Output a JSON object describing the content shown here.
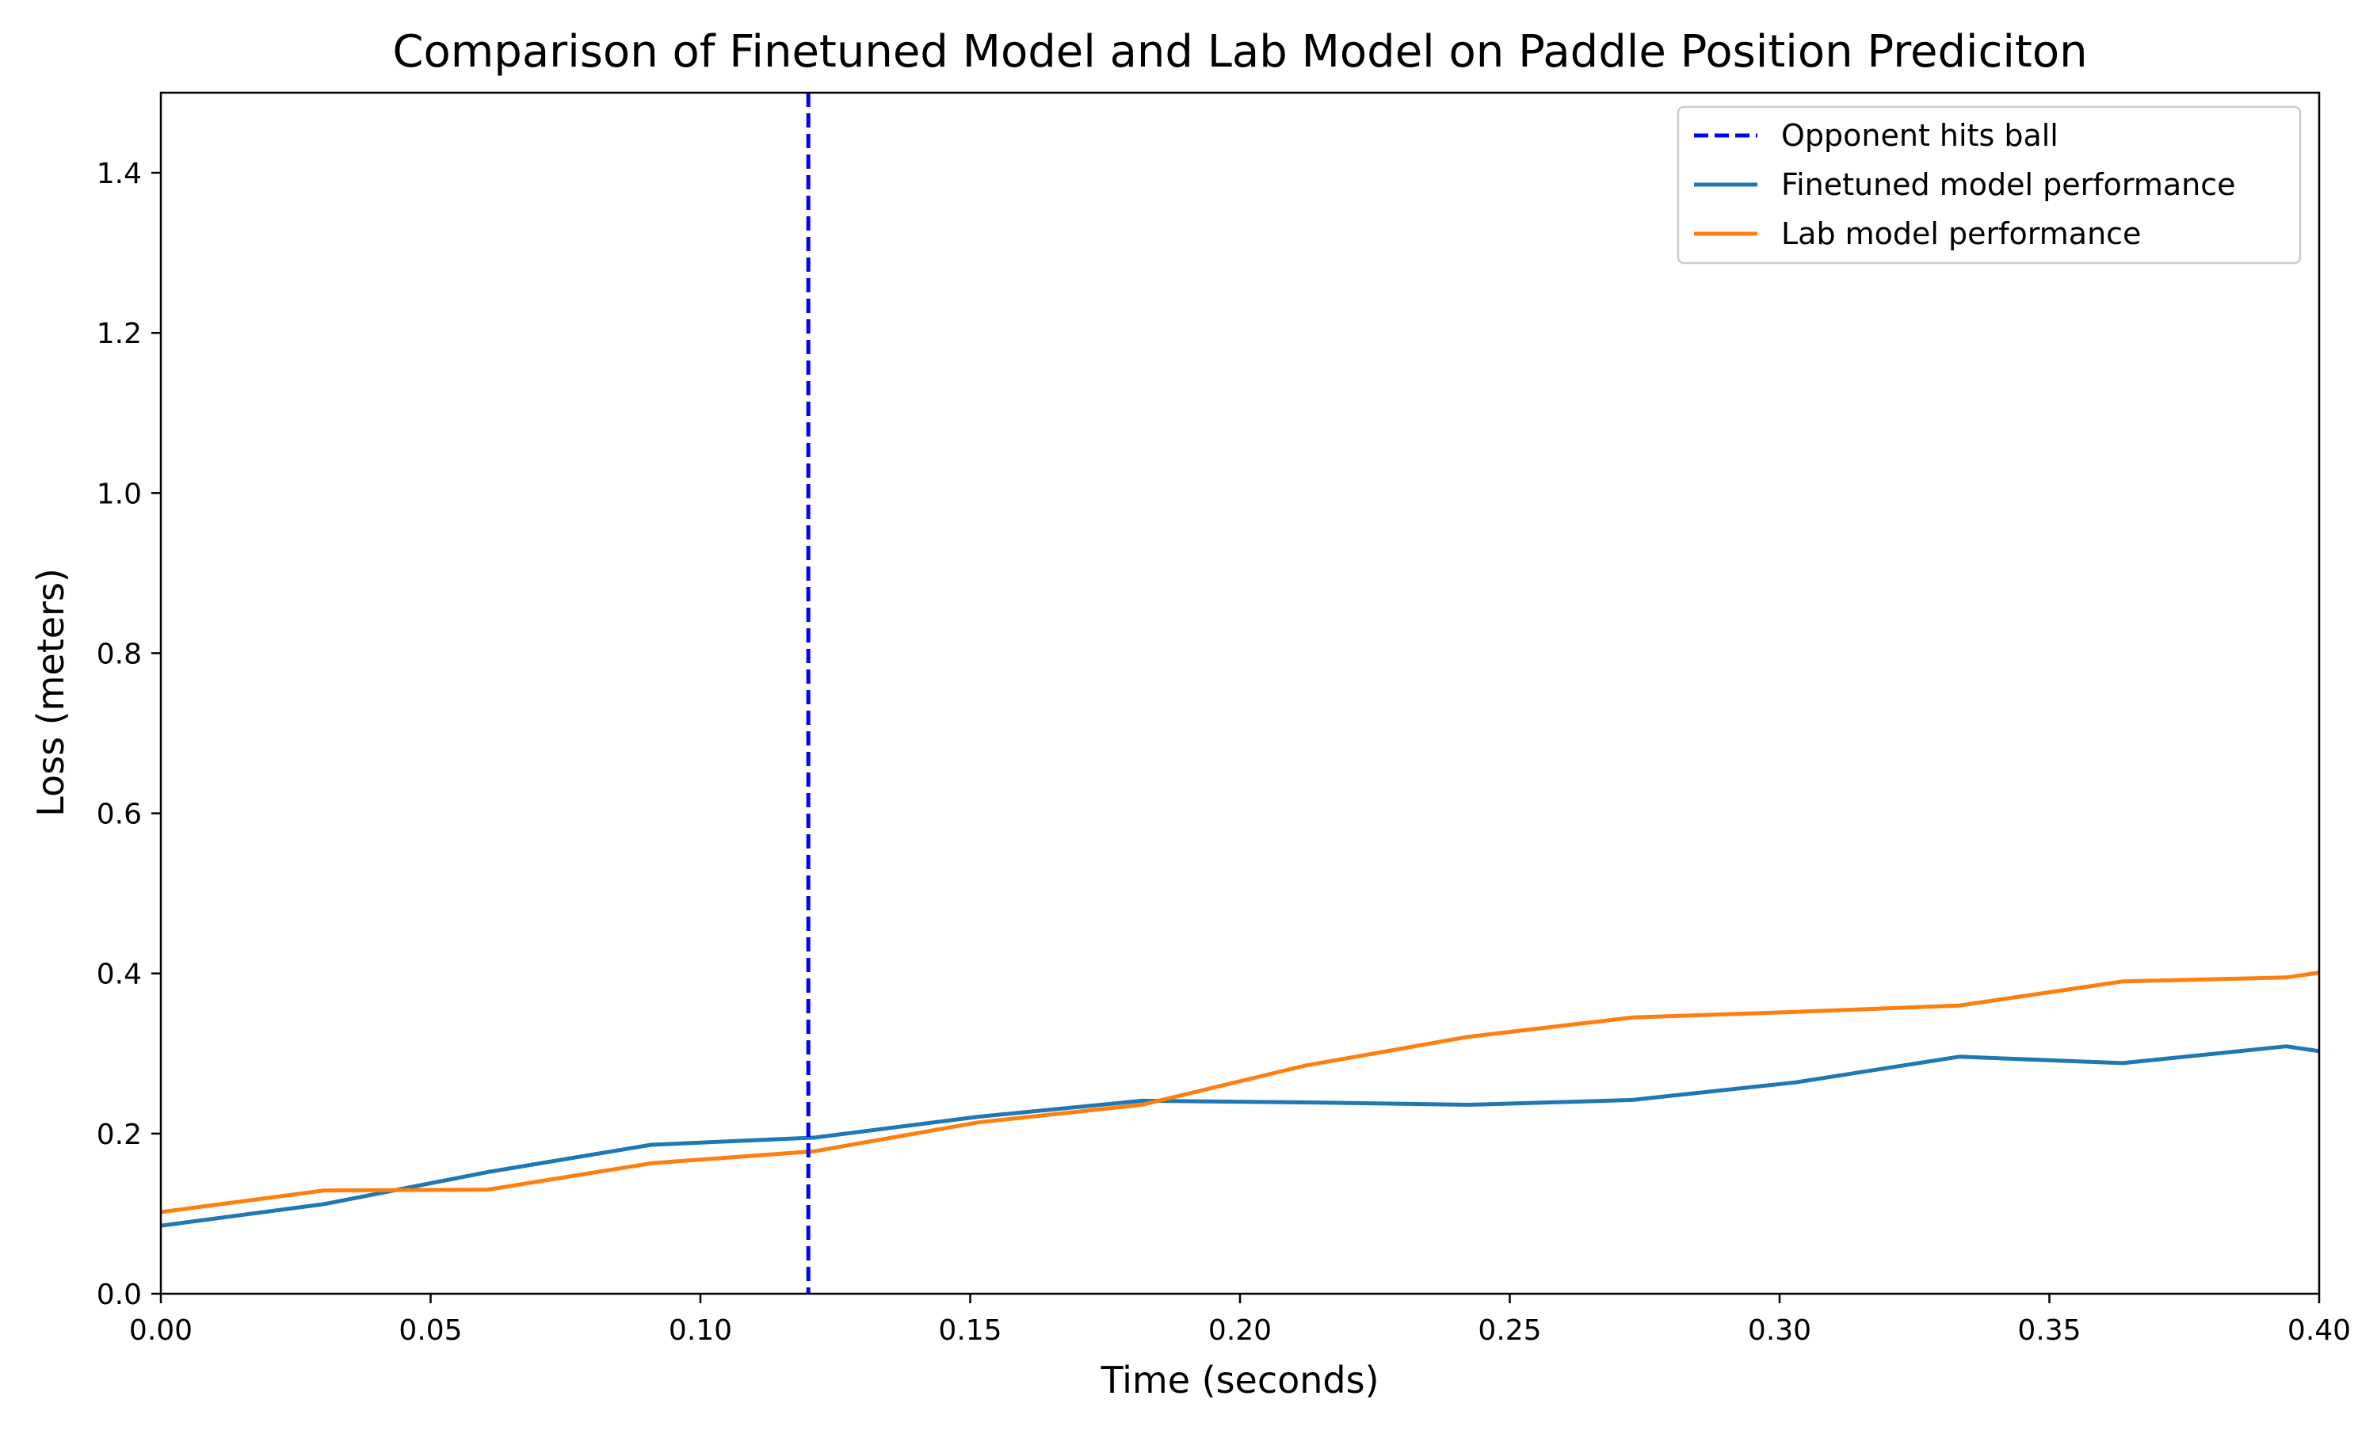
{
  "chart_data": {
    "type": "line",
    "title": "Comparison of Finetuned Model and Lab Model on Paddle Position Prediciton",
    "xlabel": "Time (seconds)",
    "ylabel": "Loss (meters)",
    "xlim": [
      0.0,
      0.4
    ],
    "ylim": [
      0.0,
      1.5
    ],
    "xticks": [
      0.0,
      0.05,
      0.1,
      0.15,
      0.2,
      0.25,
      0.3,
      0.35,
      0.4
    ],
    "xtick_labels": [
      "0.00",
      "0.05",
      "0.10",
      "0.15",
      "0.20",
      "0.25",
      "0.30",
      "0.35",
      "0.40"
    ],
    "yticks": [
      0.0,
      0.2,
      0.4,
      0.6,
      0.8,
      1.0,
      1.2,
      1.4
    ],
    "ytick_labels": [
      "0.0",
      "0.2",
      "0.4",
      "0.6",
      "0.8",
      "1.0",
      "1.2",
      "1.4"
    ],
    "grid": false,
    "legend_position": "top-right",
    "vline": {
      "name": "Opponent hits ball",
      "x": 0.12,
      "color": "#0000ff",
      "style": "dashed"
    },
    "series": [
      {
        "name": "Finetuned model performance",
        "color": "#1f77b4",
        "x": [
          0.0,
          0.0303,
          0.0606,
          0.0909,
          0.1212,
          0.1515,
          0.1818,
          0.2121,
          0.2424,
          0.2727,
          0.303,
          0.3333,
          0.3636,
          0.3939,
          0.4
        ],
        "y": [
          0.085,
          0.112,
          0.152,
          0.186,
          0.195,
          0.221,
          0.241,
          0.239,
          0.236,
          0.242,
          0.264,
          0.296,
          0.288,
          0.309,
          0.303
        ]
      },
      {
        "name": "Lab model performance",
        "color": "#ff7f0e",
        "x": [
          0.0,
          0.0303,
          0.0606,
          0.0909,
          0.1212,
          0.1515,
          0.1818,
          0.2121,
          0.2424,
          0.2727,
          0.303,
          0.3333,
          0.3636,
          0.3939,
          0.4
        ],
        "y": [
          0.102,
          0.129,
          0.13,
          0.163,
          0.178,
          0.214,
          0.236,
          0.285,
          0.321,
          0.345,
          0.352,
          0.36,
          0.39,
          0.395,
          0.401
        ]
      }
    ]
  }
}
